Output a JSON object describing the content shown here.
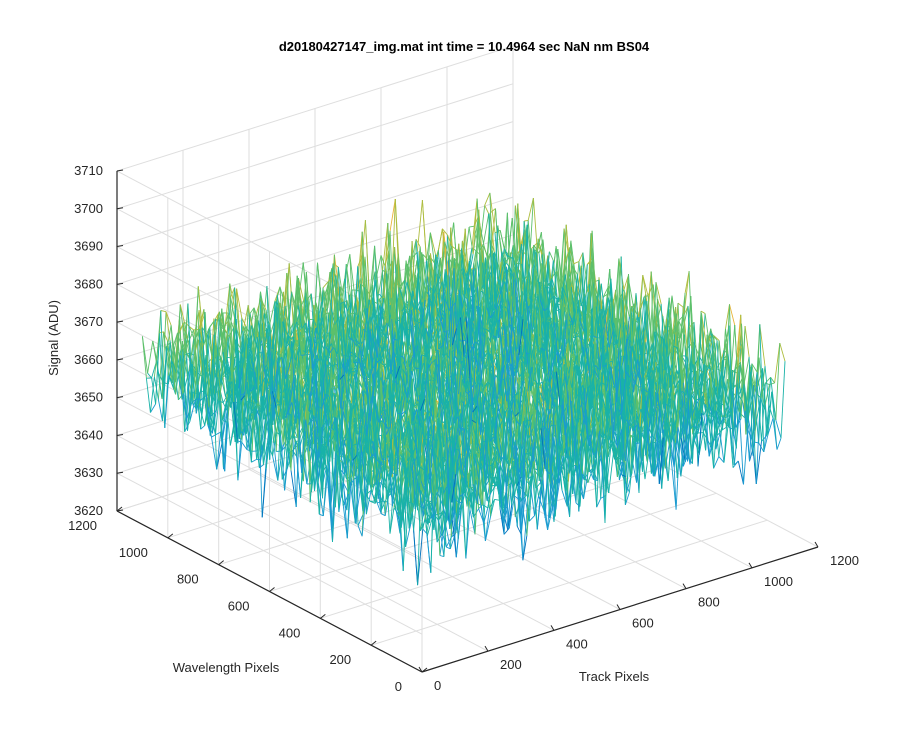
{
  "chart_data": {
    "type": "surface",
    "title": "d20180427147_img.mat int time = 10.4964 sec  NaN nm BS04",
    "xlabel": "Track Pixels",
    "ylabel": "Wavelength Pixels",
    "zlabel": "Signal (ADU)",
    "xlim": [
      0,
      1200
    ],
    "ylim": [
      0,
      1200
    ],
    "zlim": [
      3620,
      3710
    ],
    "x_ticks": [
      0,
      200,
      400,
      600,
      800,
      1000,
      1200
    ],
    "y_ticks": [
      0,
      200,
      400,
      600,
      800,
      1000,
      1200
    ],
    "z_ticks": [
      3620,
      3630,
      3640,
      3650,
      3660,
      3670,
      3680,
      3690,
      3700,
      3710
    ],
    "data_extent": {
      "x": [
        0,
        1100
      ],
      "y": [
        0,
        1100
      ]
    },
    "signal_mean": 3662,
    "signal_range": [
      3635,
      3695
    ],
    "grid": true,
    "colormap": [
      "#0072bd",
      "#1a9bd0",
      "#19b2a8",
      "#5dc06b",
      "#aebd3f",
      "#e8b53a"
    ]
  }
}
